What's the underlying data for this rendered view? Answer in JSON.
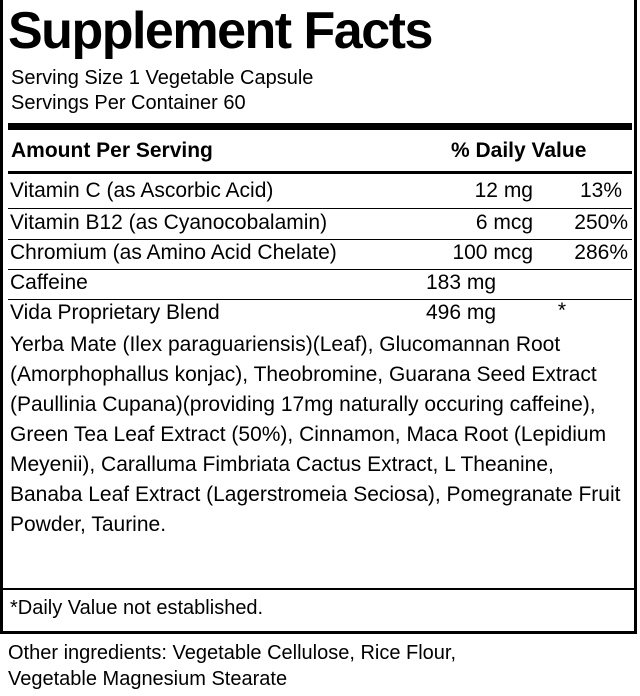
{
  "title": "Supplement Facts",
  "serving_size": "Serving Size 1 Vegetable Capsule",
  "servings_per_container": "Servings Per Container 60",
  "header": {
    "amount": "Amount Per Serving",
    "dv": "% Daily Value"
  },
  "rows": [
    {
      "name": "Vitamin C (as Ascorbic Acid)",
      "amount": "12 mg",
      "dv": "13%"
    },
    {
      "name": "Vitamin B12 (as Cyanocobalamin)",
      "amount": "6 mcg",
      "dv": "250%"
    },
    {
      "name": "Chromium (as Amino Acid Chelate)",
      "amount": "100 mcg",
      "dv": "286%"
    },
    {
      "name": "Caffeine",
      "amount": "183 mg",
      "dv": ""
    },
    {
      "name": "Vida Proprietary Blend",
      "amount": "496 mg",
      "dv": "*"
    }
  ],
  "blend_ingredients": "Yerba Mate (Ilex paraguariensis)(Leaf), Glucomannan Root (Amorphophallus konjac), Theobromine, Guarana Seed Extract (Paullinia Cupana)(providing 17mg naturally occuring caffeine), Green Tea Leaf Extract (50%), Cinnamon, Maca Root (Lepidium Meyenii), Caralluma Fimbriata Cactus Extract, L Theanine, Banaba Leaf Extract (Lagerstromeia Seciosa), Pomegranate Fruit Powder, Taurine.",
  "footnote": "*Daily Value not established.",
  "other_ingredients": "Other ingredients: Vegetable Cellulose, Rice Flour, Vegetable Magnesium Stearate"
}
